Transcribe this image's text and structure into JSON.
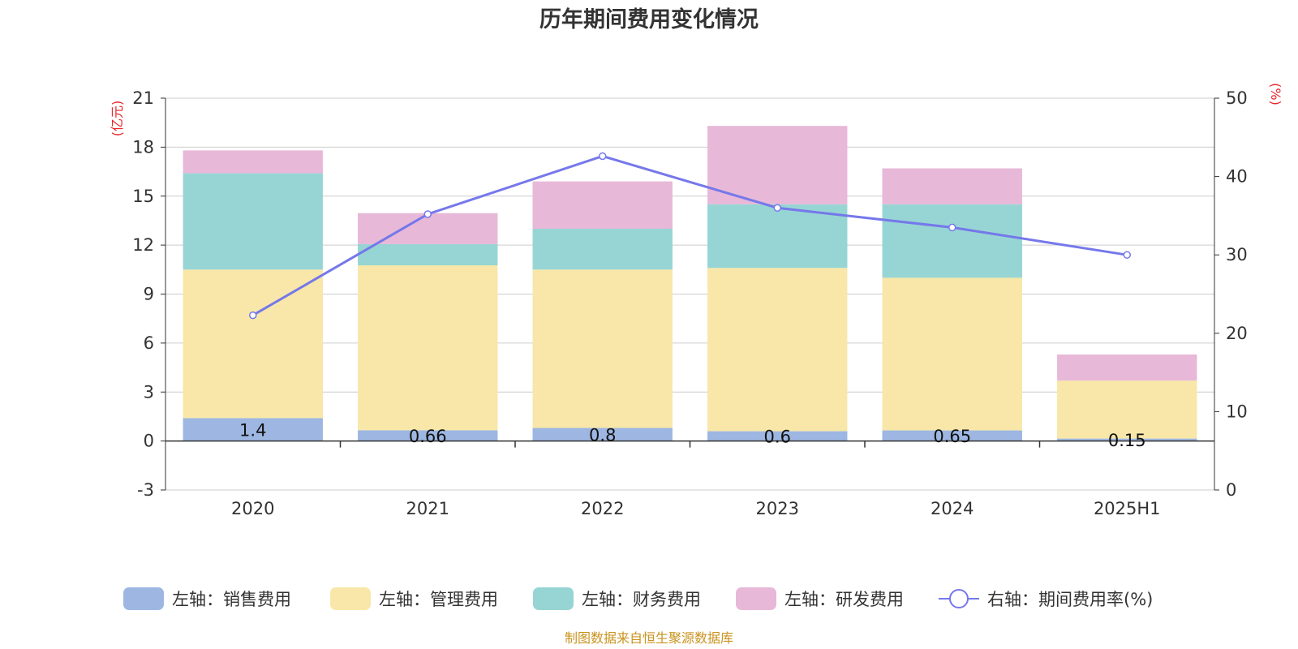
{
  "chart_data": {
    "type": "bar",
    "title": "历年期间费用变化情况",
    "categories": [
      "2020",
      "2021",
      "2022",
      "2023",
      "2024",
      "2025H1"
    ],
    "left_axis": {
      "unit": "(亿元)",
      "ylim": [
        -3,
        21
      ],
      "ticks": [
        -3,
        0,
        3,
        6,
        9,
        12,
        15,
        18,
        21
      ]
    },
    "right_axis": {
      "unit": "(%)",
      "ylim": [
        0,
        50
      ],
      "ticks": [
        0,
        10,
        20,
        30,
        40,
        50
      ]
    },
    "stacked": true,
    "series": [
      {
        "name": "左轴：销售费用",
        "axis": "left",
        "color": "#9db7e2",
        "values": [
          1.4,
          0.66,
          0.8,
          0.6,
          0.65,
          0.15
        ],
        "labels": [
          "1.4",
          "0.66",
          "0.8",
          "0.6",
          "0.65",
          "0.15"
        ]
      },
      {
        "name": "左轴：管理费用",
        "axis": "left",
        "color": "#f8e7a8",
        "values": [
          9.1,
          10.1,
          9.7,
          10.0,
          9.35,
          3.55
        ]
      },
      {
        "name": "左轴：财务费用",
        "axis": "left",
        "color": "#97d5d4",
        "values": [
          5.9,
          1.3,
          2.5,
          3.9,
          4.5,
          0.0
        ]
      },
      {
        "name": "左轴：研发费用",
        "axis": "left",
        "color": "#e8b8d8",
        "values": [
          1.4,
          1.9,
          2.9,
          4.8,
          2.2,
          1.6
        ]
      },
      {
        "name": "右轴：期间费用率(%)",
        "axis": "right",
        "type": "line",
        "color": "#7578ea",
        "values": [
          22.3,
          35.2,
          42.6,
          36.0,
          33.5,
          30.0
        ]
      }
    ],
    "grid": true,
    "legend_position": "bottom",
    "source": "制图数据来自恒生聚源数据库"
  }
}
